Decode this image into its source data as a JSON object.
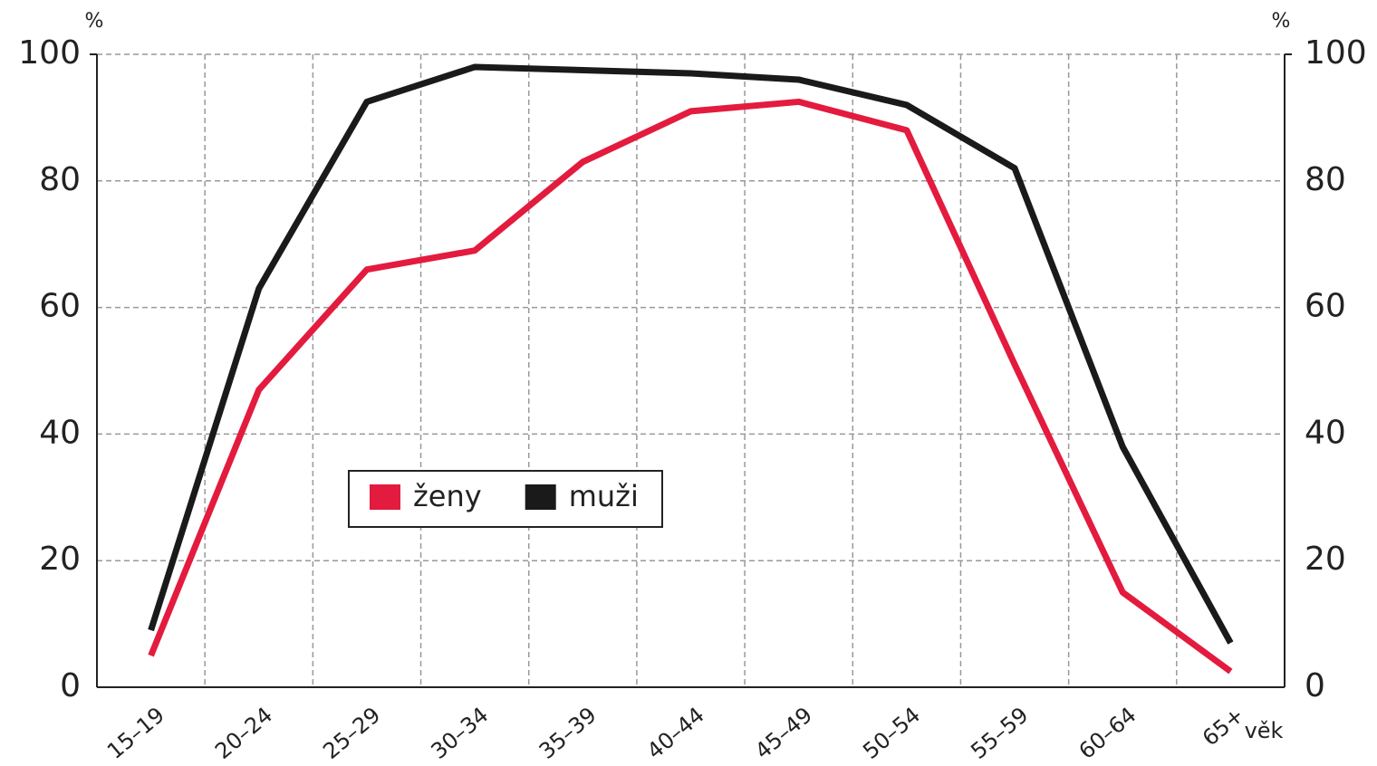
{
  "chart_data": {
    "type": "line",
    "y_label": "%",
    "y2_label": "%",
    "x_label": "věk",
    "categories": [
      "15–19",
      "20–24",
      "25–29",
      "30–34",
      "35–39",
      "40–44",
      "45–49",
      "50–54",
      "55–59",
      "60–64",
      "65+"
    ],
    "series": [
      {
        "name": "ženy",
        "color": "#e31b3e",
        "values": [
          5,
          47,
          66,
          69,
          83,
          91,
          92.5,
          88,
          51,
          15,
          2.5
        ]
      },
      {
        "name": "muži",
        "color": "#1a1a1a",
        "values": [
          9,
          63,
          92.5,
          98,
          97.5,
          97,
          96,
          92,
          82,
          38,
          7
        ]
      }
    ],
    "ylim": [
      0,
      100
    ],
    "yticks": [
      0,
      20,
      40,
      60,
      80,
      100
    ],
    "y2lim": [
      0,
      100
    ],
    "y2ticks": [
      0,
      20,
      40,
      60,
      80,
      100
    ],
    "grid": true
  }
}
